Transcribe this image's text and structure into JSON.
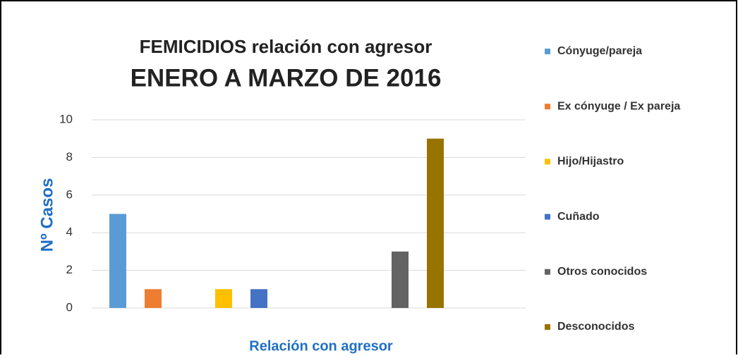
{
  "chart_data": {
    "type": "bar",
    "title": "FEMICIDIOS relación con agresor",
    "subtitle": "ENERO A MARZO DE 2016",
    "y_label": "Nº Casos",
    "x_label": "Relación con agresor",
    "series": [
      {
        "name": "Cónyuge/pareja",
        "color": "#5b9bd5",
        "values": [
          5
        ]
      },
      {
        "name": "Ex cónyuge / Ex pareja",
        "color": "#ed7d31",
        "values": [
          1
        ]
      },
      {
        "name": "Hijo/Hijastro",
        "color": "#ffc000",
        "values": [
          1
        ]
      },
      {
        "name": "Cuñado",
        "color": "#4472c4",
        "values": [
          1
        ]
      },
      {
        "name": "Otros conocidos",
        "color": "#636363",
        "values": [
          3
        ]
      },
      {
        "name": "Desconocidos",
        "color": "#997300",
        "values": [
          9
        ]
      }
    ],
    "ylim": [
      0,
      10
    ],
    "yticks": [
      0,
      2,
      4,
      6,
      8,
      10
    ],
    "grid": true,
    "legend": "right"
  }
}
